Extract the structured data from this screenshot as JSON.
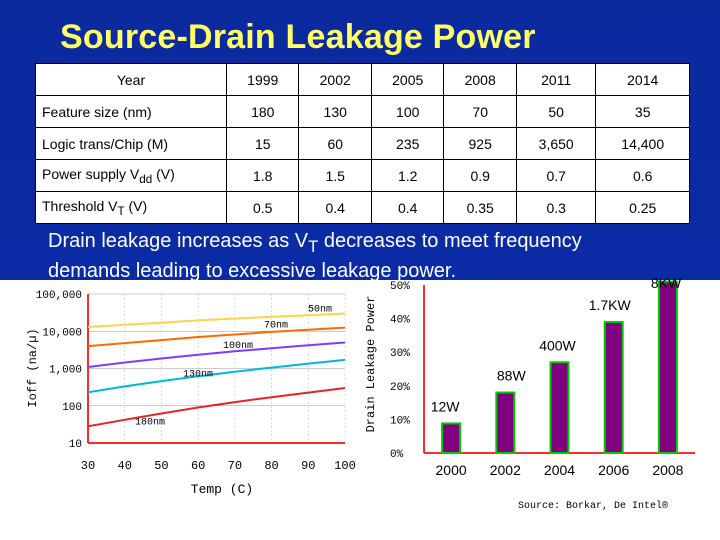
{
  "slide": {
    "title": "Source-Drain Leakage Power",
    "note_line1": "Drain leakage increases as V",
    "note_sub": "T",
    "note_line1_end": " decreases to meet frequency",
    "note_line2": "demands leading to excessive leakage power.",
    "source": "Source: Borkar, De Intel®"
  },
  "table": {
    "header": [
      "Year",
      "1999",
      "2002",
      "2005",
      "2008",
      "2011",
      "2014"
    ],
    "rows": [
      {
        "label": "Feature size (nm)",
        "values": [
          "180",
          "130",
          "100",
          "70",
          "50",
          "35"
        ]
      },
      {
        "label": "Logic trans/Chip (M)",
        "values": [
          "15",
          "60",
          "235",
          "925",
          "3,650",
          "14,400"
        ]
      },
      {
        "label": "Power supply V",
        "sub": "dd",
        "suffix": " (V)",
        "values": [
          "1.8",
          "1.5",
          "1.2",
          "0.9",
          "0.7",
          "0.6"
        ]
      },
      {
        "label": "Threshold V",
        "sub": "T",
        "suffix": " (V)",
        "values": [
          "0.5",
          "0.4",
          "0.4",
          "0.35",
          "0.3",
          "0.25"
        ]
      }
    ]
  },
  "colors": {
    "background": "#0b2a9e",
    "title": "#ffff66",
    "bar_fill": "#800080",
    "bar_stroke": "#00cc00",
    "line_colors": [
      "#ffd24d",
      "#ff6a00",
      "#7d3cff",
      "#00b7e0",
      "#e62424"
    ]
  },
  "chart_data": [
    {
      "type": "line",
      "title": "",
      "xlabel": "Temp (C)",
      "ylabel": "Ioff (na/µ)",
      "yscale": "log",
      "xlim": [
        30,
        100
      ],
      "ylim": [
        10,
        100000
      ],
      "x_ticks": [
        "30",
        "40",
        "50",
        "60",
        "70",
        "80",
        "90",
        "100"
      ],
      "y_ticks": [
        "100,000",
        "10,000",
        "1,000",
        "100",
        "10"
      ],
      "x": [
        30,
        40,
        50,
        60,
        70,
        80,
        90,
        100
      ],
      "series": [
        {
          "name": "50nm",
          "values": [
            13000,
            15000,
            17000,
            19500,
            22000,
            24500,
            27000,
            30000
          ]
        },
        {
          "name": "70nm",
          "values": [
            4000,
            4800,
            5800,
            7000,
            8200,
            9600,
            11000,
            12500
          ]
        },
        {
          "name": "100nm",
          "values": [
            1100,
            1450,
            1850,
            2350,
            2900,
            3500,
            4200,
            5000
          ]
        },
        {
          "name": "130nm",
          "values": [
            230,
            330,
            460,
            620,
            820,
            1060,
            1350,
            1700
          ]
        },
        {
          "name": "180nm",
          "values": [
            28,
            42,
            62,
            90,
            125,
            170,
            225,
            300
          ]
        }
      ]
    },
    {
      "type": "bar",
      "title": "",
      "xlabel": "",
      "ylabel": "Drain Leakage Power",
      "ylim": [
        0,
        50
      ],
      "y_ticks": [
        "50%",
        "40%",
        "30%",
        "20%",
        "10%",
        "0%"
      ],
      "categories": [
        "2000",
        "2002",
        "2004",
        "2006",
        "2008"
      ],
      "values": [
        8.8,
        18,
        27,
        39,
        51
      ],
      "labels": [
        "12W",
        "88W",
        "400W",
        "1.7KW",
        "8KW"
      ]
    }
  ]
}
